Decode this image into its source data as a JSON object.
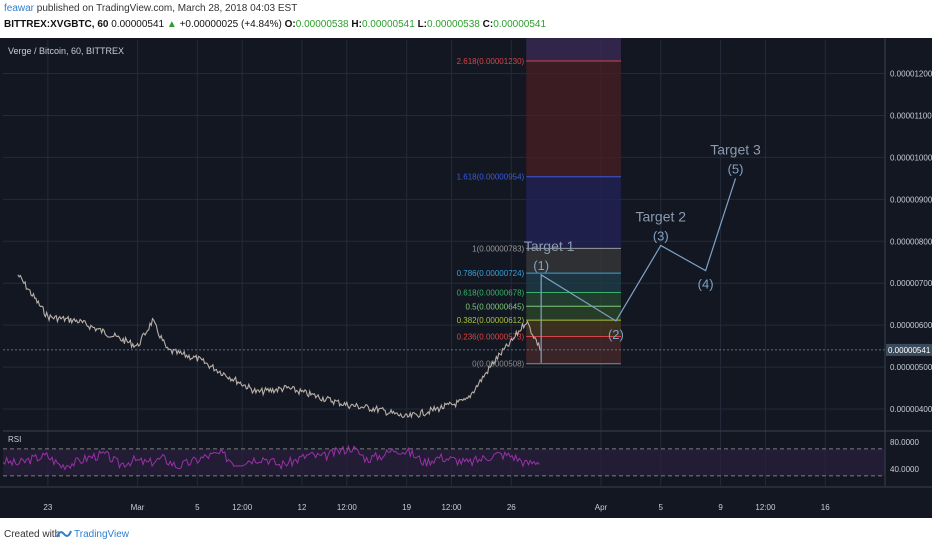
{
  "header": {
    "author": "feawar",
    "published_text": " published on TradingView.com, March 28, 2018 04:03 EST",
    "symbol": "BITTREX:XVGBTC, 60",
    "last_price": "0.00000541",
    "change_arrow": "▲",
    "change": "+0.00000025 (+4.84%)",
    "open_label": "O:",
    "open": "0.00000538",
    "high_label": "H:",
    "high": "0.00000541",
    "low_label": "L:",
    "low": "0.00000538",
    "close_label": "C:",
    "close": "0.00000541"
  },
  "footer": {
    "created_with": "Created with",
    "brand": "TradingView"
  },
  "colors": {
    "background": "#131722",
    "grid": "#232a3a",
    "candle": "#b8b0a8",
    "rsi": "#9b30a8",
    "rsi_band": "#2a1f3d",
    "wave": "#7ea3c8",
    "green": "#2e9e2e"
  },
  "chart_data": {
    "type": "line",
    "title": "Verge / Bitcoin, 60, BITTREX",
    "xlabel": "",
    "ylabel": "",
    "grid": true,
    "ylim": [
      3.5e-06,
      1.28e-05
    ],
    "y_ticks": [
      "0.00001200",
      "0.00001100",
      "0.00001000",
      "0.00000900",
      "0.00000800",
      "0.00000700",
      "0.00000600",
      "0.00000500",
      "0.00000400"
    ],
    "x_ticks": [
      "23",
      "Mar",
      "5",
      "12:00",
      "12",
      "12:00",
      "19",
      "12:00",
      "26",
      "Apr",
      "5",
      "9",
      "12:00",
      "16"
    ],
    "last_price_label": "0.00000541",
    "price_series": {
      "name": "XVGBTC",
      "x": [
        "2018-02-21",
        "2018-02-23",
        "2018-02-25",
        "2018-02-27",
        "2018-03-01",
        "2018-03-02",
        "2018-03-03",
        "2018-03-05",
        "2018-03-07",
        "2018-03-09",
        "2018-03-11",
        "2018-03-13",
        "2018-03-15",
        "2018-03-17",
        "2018-03-19",
        "2018-03-21",
        "2018-03-23",
        "2018-03-24",
        "2018-03-25",
        "2018-03-26",
        "2018-03-27",
        "2018-03-28"
      ],
      "y": [
        7.2e-06,
        6.2e-06,
        6.1e-06,
        5.8e-06,
        5.5e-06,
        6.1e-06,
        5.4e-06,
        5.2e-06,
        4.8e-06,
        4.4e-06,
        4.5e-06,
        4.3e-06,
        4.1e-06,
        4e-06,
        3.8e-06,
        4e-06,
        4.2e-06,
        4.7e-06,
        5.2e-06,
        5.6e-06,
        6.1e-06,
        5.4e-06
      ]
    },
    "fibonacci": [
      {
        "level": "0",
        "price": "0.00000508",
        "color": "#8a8a8a"
      },
      {
        "level": "0.236",
        "price": "0.00000573",
        "color": "#d64545"
      },
      {
        "level": "0.382",
        "price": "0.00000612",
        "color": "#a8c43a"
      },
      {
        "level": "0.5",
        "price": "0.00000645",
        "color": "#7fc97f"
      },
      {
        "level": "0.618",
        "price": "0.00000678",
        "color": "#3bb26b"
      },
      {
        "level": "0.786",
        "price": "0.00000724",
        "color": "#3aa0d8"
      },
      {
        "level": "1",
        "price": "0.00000783",
        "color": "#9a9a9a"
      },
      {
        "level": "1.618",
        "price": "0.00000954",
        "color": "#3b5bd8"
      },
      {
        "level": "2.618",
        "price": "0.00001230",
        "color": "#d64545"
      }
    ],
    "elliott_waves": [
      {
        "label": "(1)",
        "x": "2018-03-28",
        "price": 7.2e-06
      },
      {
        "label": "(2)",
        "x": "2018-04-02",
        "price": 6.1e-06
      },
      {
        "label": "(3)",
        "x": "2018-04-05",
        "price": 7.9e-06
      },
      {
        "label": "(4)",
        "x": "2018-04-08",
        "price": 7.3e-06
      },
      {
        "label": "(5)",
        "x": "2018-04-10",
        "price": 9.5e-06
      }
    ],
    "targets": [
      {
        "label": "Target 1",
        "wave": "(1)"
      },
      {
        "label": "Target 2",
        "wave": "(3)"
      },
      {
        "label": "Target 3",
        "wave": "(5)"
      }
    ],
    "rsi": {
      "label": "RSI",
      "ticks": [
        "80.0000",
        "40.0000"
      ],
      "upper": 70,
      "lower": 30,
      "values": [
        52,
        48,
        55,
        60,
        45,
        50,
        58,
        62,
        47,
        53,
        49,
        56,
        44,
        51,
        59,
        63,
        48,
        54,
        57,
        46,
        52,
        61,
        58,
        66,
        72,
        55,
        60,
        70,
        64,
        50,
        58,
        54,
        49,
        56,
        62,
        60,
        48,
        53
      ]
    }
  }
}
